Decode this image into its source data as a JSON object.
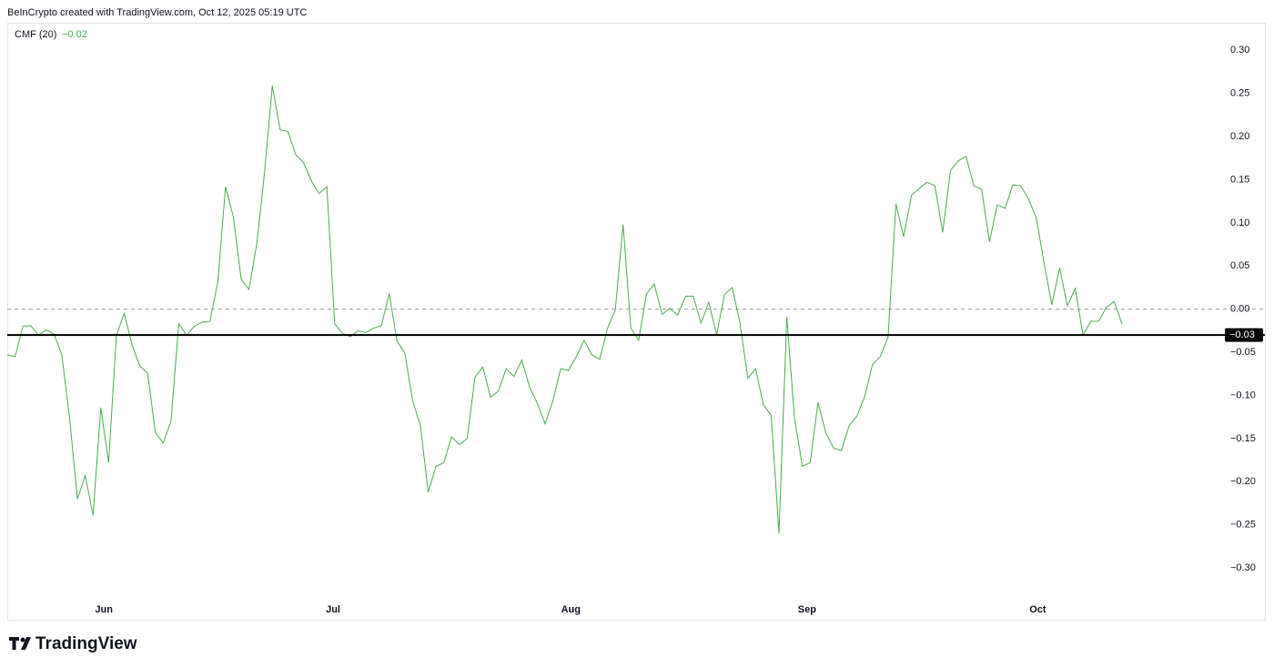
{
  "attribution": "BeInCrypto created with TradingView.com, Oct 12, 2025 05:19 UTC",
  "brand": "TradingView",
  "chart_data": {
    "type": "line",
    "series": [
      {
        "name": "CMF (20)",
        "color": "#4caf50",
        "legend_value": "−0.02",
        "values": [
          -0.053,
          -0.055,
          -0.02,
          -0.019,
          -0.03,
          -0.024,
          -0.029,
          -0.053,
          -0.127,
          -0.22,
          -0.193,
          -0.239,
          -0.114,
          -0.178,
          -0.03,
          -0.005,
          -0.041,
          -0.066,
          -0.074,
          -0.143,
          -0.155,
          -0.13,
          -0.017,
          -0.03,
          -0.02,
          -0.015,
          -0.014,
          0.031,
          0.142,
          0.107,
          0.035,
          0.023,
          0.075,
          0.158,
          0.259,
          0.208,
          0.206,
          0.179,
          0.17,
          0.149,
          0.134,
          0.142,
          -0.017,
          -0.028,
          -0.032,
          -0.025,
          -0.027,
          -0.022,
          -0.019,
          0.018,
          -0.037,
          -0.051,
          -0.106,
          -0.135,
          -0.212,
          -0.182,
          -0.178,
          -0.148,
          -0.157,
          -0.15,
          -0.079,
          -0.067,
          -0.102,
          -0.095,
          -0.069,
          -0.078,
          -0.059,
          -0.09,
          -0.109,
          -0.133,
          -0.106,
          -0.069,
          -0.071,
          -0.055,
          -0.036,
          -0.053,
          -0.058,
          -0.022,
          -0.001,
          0.098,
          -0.022,
          -0.036,
          0.018,
          0.029,
          -0.006,
          0.001,
          -0.007,
          0.015,
          0.015,
          -0.016,
          0.008,
          -0.03,
          0.017,
          0.025,
          -0.016,
          -0.08,
          -0.069,
          -0.111,
          -0.123,
          -0.26,
          -0.009,
          -0.127,
          -0.182,
          -0.178,
          -0.108,
          -0.143,
          -0.161,
          -0.164,
          -0.135,
          -0.124,
          -0.101,
          -0.064,
          -0.055,
          -0.032,
          0.122,
          0.084,
          0.132,
          0.14,
          0.147,
          0.143,
          0.089,
          0.161,
          0.172,
          0.177,
          0.143,
          0.139,
          0.078,
          0.121,
          0.117,
          0.144,
          0.143,
          0.128,
          0.106,
          0.054,
          0.005,
          0.048,
          0.004,
          0.024,
          -0.03,
          -0.014,
          -0.014,
          0.002,
          0.009,
          -0.017
        ]
      }
    ],
    "xlim": [
      0,
      155.5
    ],
    "xticks": [
      {
        "value": 12.4,
        "label": "Jun"
      },
      {
        "value": 41.8,
        "label": "Jul"
      },
      {
        "value": 72.3,
        "label": "Aug"
      },
      {
        "value": 102.6,
        "label": "Sep"
      },
      {
        "value": 132.2,
        "label": "Oct"
      }
    ],
    "ylim": [
      -0.36,
      0.332
    ],
    "yticks": [
      {
        "value": 0.3,
        "label": "0.30"
      },
      {
        "value": 0.25,
        "label": "0.25"
      },
      {
        "value": 0.2,
        "label": "0.20"
      },
      {
        "value": 0.15,
        "label": "0.15"
      },
      {
        "value": 0.1,
        "label": "0.10"
      },
      {
        "value": 0.05,
        "label": "0.05"
      },
      {
        "value": 0,
        "label": "0.00"
      },
      {
        "value": -0.05,
        "label": "−0.05"
      },
      {
        "value": -0.1,
        "label": "−0.10"
      },
      {
        "value": -0.15,
        "label": "−0.15"
      },
      {
        "value": -0.2,
        "label": "−0.20"
      },
      {
        "value": -0.25,
        "label": "−0.25"
      },
      {
        "value": -0.3,
        "label": "−0.30"
      }
    ],
    "baseline": 0,
    "level_line": {
      "value": -0.03,
      "label": "−0.03"
    }
  }
}
